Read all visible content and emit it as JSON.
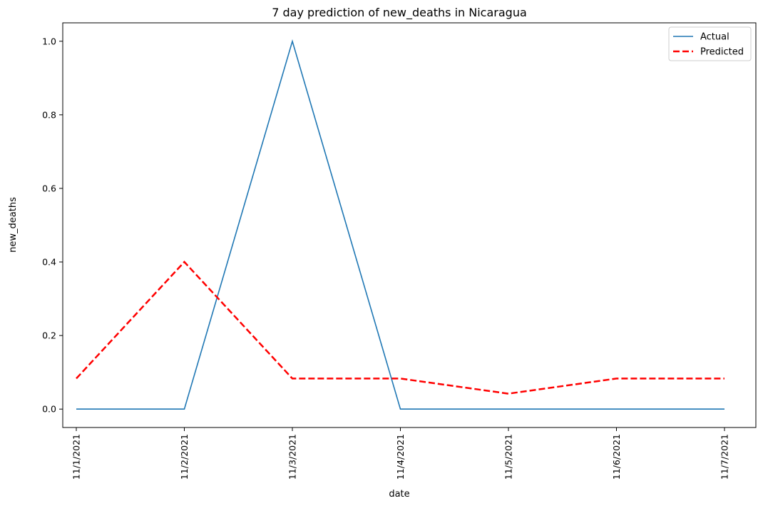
{
  "chart_data": {
    "type": "line",
    "title": "7 day prediction of new_deaths in Nicaragua",
    "xlabel": "date",
    "ylabel": "new_deaths",
    "categories": [
      "11/1/2021",
      "11/2/2021",
      "11/3/2021",
      "11/4/2021",
      "11/5/2021",
      "11/6/2021",
      "11/7/2021"
    ],
    "series": [
      {
        "name": "Actual",
        "values": [
          0,
          0,
          1,
          0,
          0,
          0,
          0
        ],
        "color": "#1f77b4",
        "style": "solid"
      },
      {
        "name": "Predicted",
        "values": [
          0.083,
          0.4,
          0.083,
          0.083,
          0.042,
          0.083,
          0.083
        ],
        "color": "#ff0000",
        "style": "dashed"
      }
    ],
    "ylim": [
      -0.05,
      1.05
    ],
    "yticks": [
      0.0,
      0.2,
      0.4,
      0.6,
      0.8,
      1.0
    ],
    "ytick_labels": [
      "0.0",
      "0.2",
      "0.4",
      "0.6",
      "0.8",
      "1.0"
    ],
    "grid": false,
    "legend": "top-right"
  }
}
